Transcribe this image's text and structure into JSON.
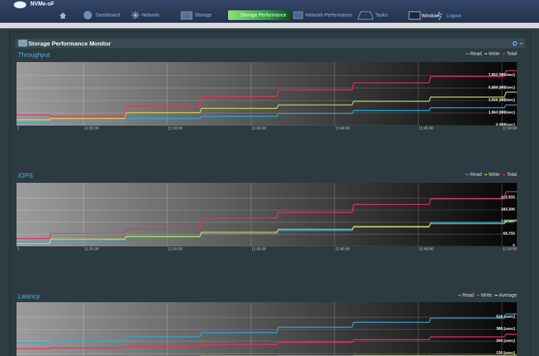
{
  "nav": {
    "logo": "NVMe-oF",
    "items": [
      "Dashboard",
      "Network",
      "Storage",
      "Storage Performance",
      "Network Performance",
      "Tasks",
      "Window",
      "Logout"
    ],
    "active": 3
  },
  "panel": {
    "title": "Storage Performance Monitor",
    "x": [
      21,
      22.95,
      23.05,
      27.45,
      27.55,
      31.95,
      32.05,
      36.55,
      36.65,
      41.05,
      41.15,
      45.65,
      45.75,
      50.15,
      50.25,
      50.9
    ],
    "xlim": [
      21,
      50.9
    ],
    "xticks": [
      {
        "value": 21,
        "label": "1"
      },
      {
        "value": 25,
        "label": "11:25:00"
      },
      {
        "value": 30,
        "label": "11:30:00"
      },
      {
        "value": 35,
        "label": "11:35:00"
      },
      {
        "value": 40,
        "label": "11:40:00"
      },
      {
        "value": 45,
        "label": "11:45:00"
      },
      {
        "value": 50,
        "label": "11:50:00"
      }
    ],
    "charts": [
      {
        "type": "line",
        "title": "Throughput",
        "ylim": [
          0,
          10000
        ],
        "yticks": [
          {
            "value": 0,
            "label": "0 [MB/sec]"
          },
          {
            "value": 1963,
            "label": "1,963 [MB/sec]"
          },
          {
            "value": 3926,
            "label": "3,926 [MB/sec]"
          },
          {
            "value": 5889,
            "label": "5,889 [MB/sec]"
          },
          {
            "value": 7852,
            "label": "7,852 [MB/sec]"
          }
        ],
        "series": [
          {
            "name": "Read",
            "color": "#2aa8dc",
            "values": [
              449,
              449,
              673,
              673,
              1122,
              1122,
              1459,
              1459,
              1907,
              1907,
              2356,
              2356,
              2805,
              2805,
              3254,
              3254
            ]
          },
          {
            "name": "Write",
            "color": "#c9dc4a",
            "values": [
              898,
              898,
              1122,
              1122,
              2020,
              2020,
              2693,
              2693,
              3254,
              3254,
              3815,
              3815,
              4488,
              4488,
              5273,
              5273
            ]
          },
          {
            "name": "Total",
            "color": "#e8305c",
            "values": [
              1683,
              1683,
              1459,
              1459,
              3030,
              3030,
              4600,
              4600,
              5610,
              5610,
              6732,
              6732,
              7742,
              7742,
              8640,
              8640
            ]
          }
        ]
      },
      {
        "type": "line",
        "title": "IOPS",
        "ylim": [
          0,
          320000
        ],
        "yticks": [
          0,
          {
            "value": 60733,
            "label": "60,733"
          },
          {
            "value": 121467,
            "label": "121,467"
          },
          {
            "value": 182200,
            "label": "182,200"
          },
          {
            "value": 242933,
            "label": "242,933"
          }
        ],
        "series": [
          {
            "name": "Read",
            "color": "#2aa8dc",
            "values": [
              21400,
              21400,
              32100,
              32100,
              46400,
              46400,
              64300,
              64300,
              78600,
              78600,
              96400,
              96400,
              121400,
              121400,
              132100,
              132100
            ]
          },
          {
            "name": "Write",
            "color": "#c9dc4a",
            "values": [
              14300,
              14300,
              35700,
              35700,
              50000,
              50000,
              71400,
              71400,
              85700,
              85700,
              100000,
              100000,
              114300,
              114300,
              128600,
              128600
            ]
          },
          {
            "name": "Total",
            "color": "#e8305c",
            "values": [
              39300,
              39300,
              64300,
              64300,
              85700,
              85700,
              142900,
              142900,
              171500,
              171500,
              210700,
              210700,
              239300,
              239300,
              275000,
              275000
            ]
          }
        ]
      },
      {
        "type": "line",
        "title": "Latency",
        "ylim": [
          0,
          680
        ],
        "yticks": [
          {
            "value": 130,
            "label": "130 [usec]"
          },
          {
            "value": 260,
            "label": "260 [usec]"
          },
          {
            "value": 388,
            "label": "388 [usec]"
          },
          {
            "value": 518,
            "label": "518 [usec]"
          }
        ],
        "series": [
          {
            "name": "Read",
            "color": "#2aa8dc",
            "values": [
              245,
              245,
              264,
              264,
              308,
              308,
              353,
              353,
              412,
              412,
              464,
              464,
              509,
              509,
              553,
              553
            ]
          },
          {
            "name": "Write",
            "color": "#e8305c",
            "values": [
              182,
              182,
              190,
              190,
              204,
              204,
              227,
              227,
              249,
              249,
              279,
              279,
              308,
              308,
              338,
              338
            ]
          },
          {
            "name": "Average",
            "color": "#c9dc4a",
            "values": [
              95,
              95,
              98,
              98,
              100,
              100,
              102,
              102,
              104,
              104,
              108,
              108,
              110,
              110,
              112,
              112
            ]
          }
        ]
      }
    ]
  }
}
